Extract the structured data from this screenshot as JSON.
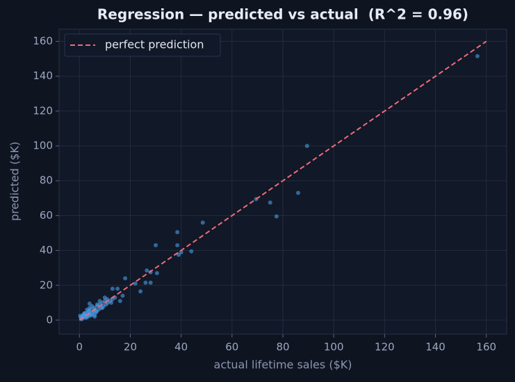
{
  "chart_data": {
    "type": "scatter",
    "title": "Regression — predicted vs actual  (R^2 = 0.96)",
    "x_label": "actual lifetime sales ($K)",
    "y_label": "predicted ($K)",
    "xlim": [
      -8,
      168
    ],
    "ylim": [
      -8,
      167
    ],
    "xticks": [
      0,
      20,
      40,
      60,
      80,
      100,
      120,
      140,
      160
    ],
    "yticks": [
      0,
      20,
      40,
      60,
      80,
      100,
      120,
      140,
      160
    ],
    "grid": true,
    "legend": "upper left",
    "series": [
      {
        "color": "#4a9ee8",
        "x": [
          156.5,
          89.5,
          86,
          77.5,
          75,
          69.5,
          48.5,
          38.5,
          30,
          38.5,
          39,
          40,
          44,
          26.5,
          28,
          30.5,
          28,
          26,
          24,
          22,
          18,
          15,
          13,
          17,
          16,
          0.5,
          1,
          1.2,
          1.5,
          2,
          2.2,
          2.5,
          3,
          3.2,
          3.5,
          4,
          4.2,
          4.5,
          5,
          5.5,
          6,
          6.5,
          7,
          7.5,
          8,
          8.5,
          9,
          9.5,
          10,
          10.5,
          11,
          12,
          12.5,
          13,
          14,
          0.3,
          0.8,
          1.8,
          2.8,
          3.8,
          4.8,
          5.8,
          6.8,
          2,
          3,
          4,
          5,
          6,
          7,
          8,
          9,
          10,
          11,
          4,
          6
        ],
        "y": [
          151.5,
          100,
          73,
          59.5,
          67.5,
          69.5,
          56,
          50.5,
          43,
          43,
          37.5,
          39,
          39.5,
          28.5,
          27.5,
          27,
          21.5,
          21.5,
          16.5,
          21,
          24,
          18,
          18,
          14,
          11,
          1.5,
          2,
          1,
          3,
          2.5,
          1.5,
          4,
          3,
          2,
          5,
          3.5,
          2.5,
          6,
          4,
          5,
          6,
          4.5,
          8,
          6,
          9,
          7,
          10,
          8,
          11,
          9,
          12,
          11,
          10,
          12,
          13,
          2.5,
          0.5,
          3.5,
          1.5,
          5,
          3,
          7,
          5,
          4,
          6,
          7,
          8,
          3,
          9,
          11,
          7,
          13,
          10,
          9.5,
          2
        ]
      }
    ],
    "line": {
      "name": "perfect prediction",
      "color": "#f26b7a",
      "x": [
        0,
        160
      ],
      "y": [
        0,
        160
      ]
    }
  }
}
